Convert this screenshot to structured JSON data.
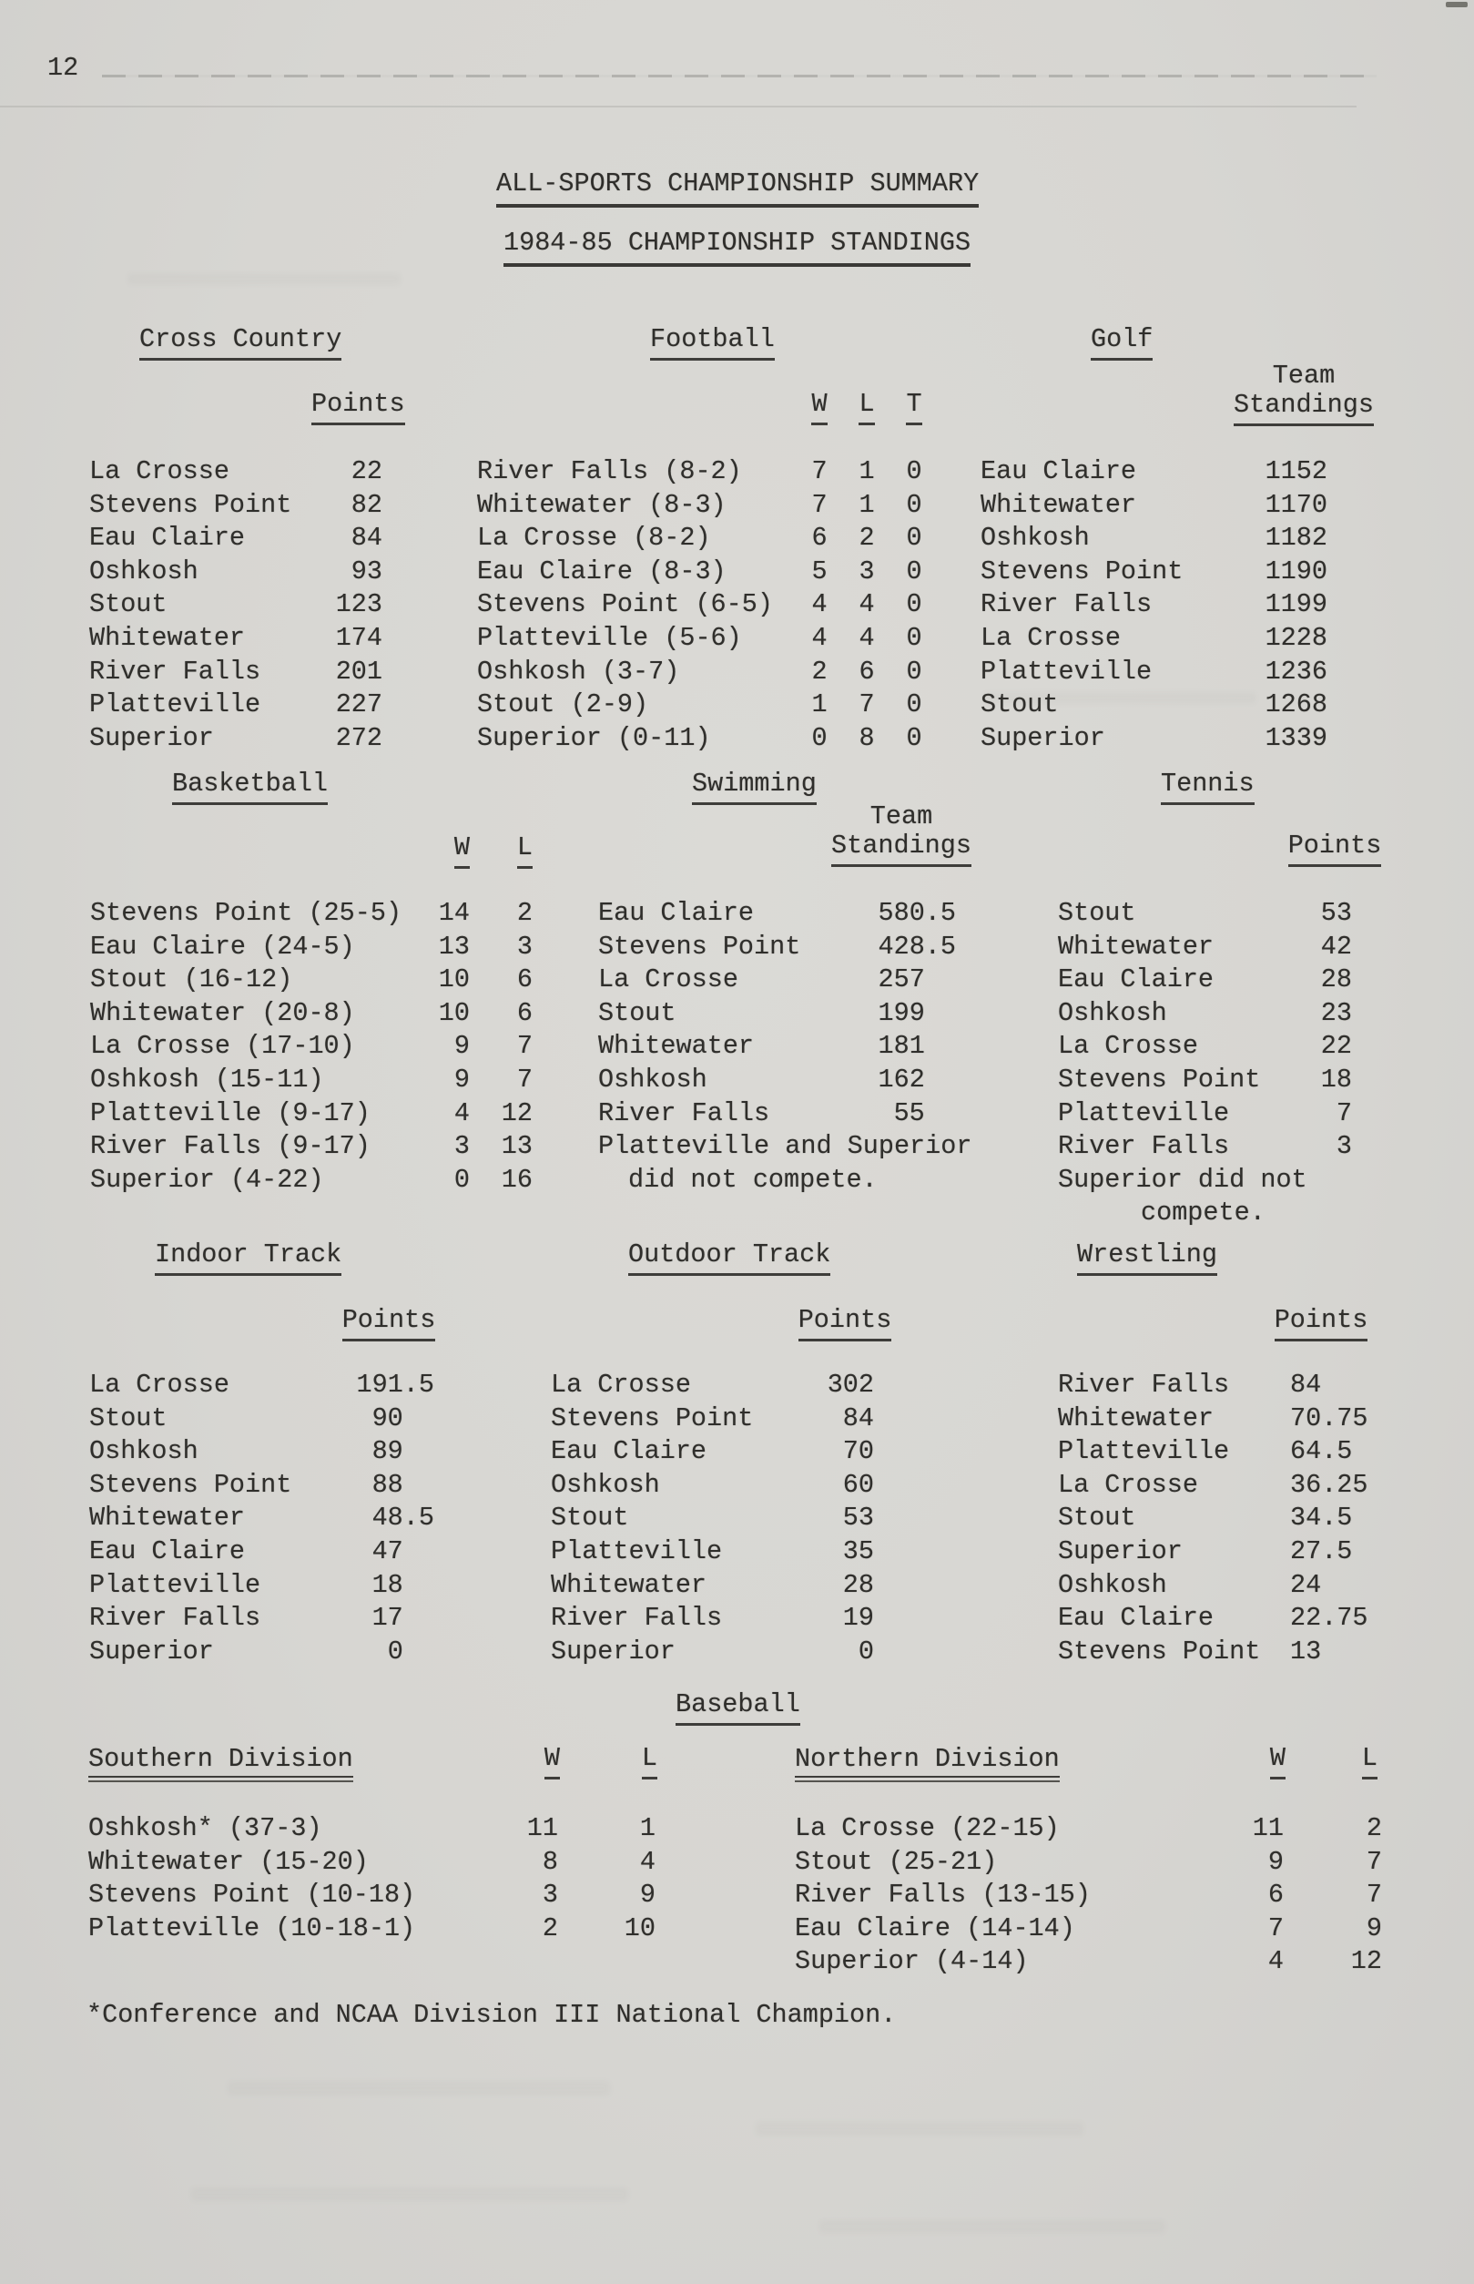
{
  "page": {
    "number": "12",
    "title1": "ALL-SPORTS CHAMPIONSHIP SUMMARY",
    "title2": "1984-85 CHAMPIONSHIP STANDINGS",
    "footnote": "*Conference and NCAA Division III National Champion."
  },
  "sections": {
    "cross_country": {
      "title": "Cross Country",
      "value_header": "Points",
      "rows": [
        [
          "La Crosse",
          "22"
        ],
        [
          "Stevens Point",
          "82"
        ],
        [
          "Eau Claire",
          "84"
        ],
        [
          "Oshkosh",
          "93"
        ],
        [
          "Stout",
          "123"
        ],
        [
          "Whitewater",
          "174"
        ],
        [
          "River Falls",
          "201"
        ],
        [
          "Platteville",
          "227"
        ],
        [
          "Superior",
          "272"
        ]
      ]
    },
    "football": {
      "title": "Football",
      "col_headers": [
        "W",
        "L",
        "T"
      ],
      "rows": [
        [
          "River Falls (8-2)",
          "7",
          "1",
          "0"
        ],
        [
          "Whitewater (8-3)",
          "7",
          "1",
          "0"
        ],
        [
          "La Crosse (8-2)",
          "6",
          "2",
          "0"
        ],
        [
          "Eau Claire (8-3)",
          "5",
          "3",
          "0"
        ],
        [
          "Stevens Point (6-5)",
          "4",
          "4",
          "0"
        ],
        [
          "Platteville (5-6)",
          "4",
          "4",
          "0"
        ],
        [
          "Oshkosh (3-7)",
          "2",
          "6",
          "0"
        ],
        [
          "Stout (2-9)",
          "1",
          "7",
          "0"
        ],
        [
          "Superior (0-11)",
          "0",
          "8",
          "0"
        ]
      ]
    },
    "golf": {
      "title": "Golf",
      "value_header_line1": "Team",
      "value_header_line2": "Standings",
      "rows": [
        [
          "Eau Claire",
          "1152"
        ],
        [
          "Whitewater",
          "1170"
        ],
        [
          "Oshkosh",
          "1182"
        ],
        [
          "Stevens Point",
          "1190"
        ],
        [
          "River Falls",
          "1199"
        ],
        [
          "La Crosse",
          "1228"
        ],
        [
          "Platteville",
          "1236"
        ],
        [
          "Stout",
          "1268"
        ],
        [
          "Superior",
          "1339"
        ]
      ]
    },
    "basketball": {
      "title": "Basketball",
      "col_headers": [
        "W",
        "L"
      ],
      "rows": [
        [
          "Stevens Point (25-5)",
          "14",
          "2"
        ],
        [
          "Eau Claire (24-5)",
          "13",
          "3"
        ],
        [
          "Stout (16-12)",
          "10",
          "6"
        ],
        [
          "Whitewater (20-8)",
          "10",
          "6"
        ],
        [
          "La Crosse (17-10)",
          "9",
          "7"
        ],
        [
          "Oshkosh (15-11)",
          "9",
          "7"
        ],
        [
          "Platteville (9-17)",
          "4",
          "12"
        ],
        [
          "River Falls (9-17)",
          "3",
          "13"
        ],
        [
          "Superior (4-22)",
          "0",
          "16"
        ]
      ]
    },
    "swimming": {
      "title": "Swimming",
      "value_header_line1": "Team",
      "value_header_line2": "Standings",
      "note_line1": "Platteville and Superior",
      "note_line2": "did not compete.",
      "rows": [
        [
          "Eau Claire",
          "580.5"
        ],
        [
          "Stevens Point",
          "428.5"
        ],
        [
          "La Crosse",
          "257"
        ],
        [
          "Stout",
          "199"
        ],
        [
          "Whitewater",
          "181"
        ],
        [
          "Oshkosh",
          "162"
        ],
        [
          "River Falls",
          "55"
        ]
      ]
    },
    "tennis": {
      "title": "Tennis",
      "value_header": "Points",
      "note_line1": "Superior did not",
      "note_line2": "compete.",
      "rows": [
        [
          "Stout",
          "53"
        ],
        [
          "Whitewater",
          "42"
        ],
        [
          "Eau Claire",
          "28"
        ],
        [
          "Oshkosh",
          "23"
        ],
        [
          "La Crosse",
          "22"
        ],
        [
          "Stevens Point",
          "18"
        ],
        [
          "Platteville",
          "7"
        ],
        [
          "River Falls",
          "3"
        ]
      ]
    },
    "indoor_track": {
      "title": "Indoor Track",
      "value_header": "Points",
      "rows": [
        [
          "La Crosse",
          "191.5"
        ],
        [
          "Stout",
          "90"
        ],
        [
          "Oshkosh",
          "89"
        ],
        [
          "Stevens Point",
          "88"
        ],
        [
          "Whitewater",
          "48.5"
        ],
        [
          "Eau Claire",
          "47"
        ],
        [
          "Platteville",
          "18"
        ],
        [
          "River Falls",
          "17"
        ],
        [
          "Superior",
          "0"
        ]
      ]
    },
    "outdoor_track": {
      "title": "Outdoor Track",
      "value_header": "Points",
      "rows": [
        [
          "La Crosse",
          "302"
        ],
        [
          "Stevens Point",
          "84"
        ],
        [
          "Eau Claire",
          "70"
        ],
        [
          "Oshkosh",
          "60"
        ],
        [
          "Stout",
          "53"
        ],
        [
          "Platteville",
          "35"
        ],
        [
          "Whitewater",
          "28"
        ],
        [
          "River Falls",
          "19"
        ],
        [
          "Superior",
          "0"
        ]
      ]
    },
    "wrestling": {
      "title": "Wrestling",
      "value_header": "Points",
      "rows": [
        [
          "River Falls",
          "84"
        ],
        [
          "Whitewater",
          "70.75"
        ],
        [
          "Platteville",
          "64.5"
        ],
        [
          "La Crosse",
          "36.25"
        ],
        [
          "Stout",
          "34.5"
        ],
        [
          "Superior",
          "27.5"
        ],
        [
          "Oshkosh",
          "24"
        ],
        [
          "Eau Claire",
          "22.75"
        ],
        [
          "Stevens Point",
          "13"
        ]
      ]
    },
    "baseball": {
      "title": "Baseball",
      "southern": {
        "title": "Southern Division",
        "col_headers": [
          "W",
          "L"
        ],
        "rows": [
          [
            "Oshkosh* (37-3)",
            "11",
            "1"
          ],
          [
            "Whitewater (15-20)",
            "8",
            "4"
          ],
          [
            "Stevens Point (10-18)",
            "3",
            "9"
          ],
          [
            "Platteville (10-18-1)",
            "2",
            "10"
          ]
        ]
      },
      "northern": {
        "title": "Northern Division",
        "col_headers": [
          "W",
          "L"
        ],
        "rows": [
          [
            "La Crosse (22-15)",
            "11",
            "2"
          ],
          [
            "Stout (25-21)",
            "9",
            "7"
          ],
          [
            "River Falls (13-15)",
            "6",
            "7"
          ],
          [
            "Eau Claire (14-14)",
            "7",
            "9"
          ],
          [
            "Superior (4-14)",
            "4",
            "12"
          ]
        ]
      }
    }
  }
}
